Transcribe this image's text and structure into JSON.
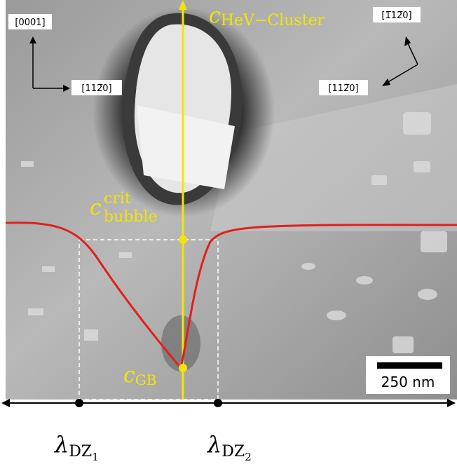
{
  "orientation_left": {
    "up": "[0001]",
    "right": "[112̅0]"
  },
  "orientation_right": {
    "up": "[1̅12̅0]",
    "down": "[112̅0]"
  },
  "labels": {
    "cluster": {
      "symbol": "c",
      "subscript": "HeV−Cluster"
    },
    "bubble": {
      "symbol": "c",
      "subscript": "bubble",
      "superscript": "crit"
    },
    "gb": {
      "symbol": "c",
      "subscript": "GB"
    },
    "dz1": {
      "symbol": "λ",
      "subscript": "DZ",
      "subsubscript": "1"
    },
    "dz2": {
      "symbol": "λ",
      "subscript": "DZ",
      "subsubscript": "2"
    }
  },
  "scale_bar": "250 nm"
}
